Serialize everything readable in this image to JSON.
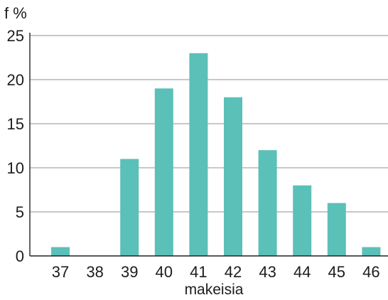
{
  "chart_data": {
    "type": "bar",
    "title": "",
    "ylabel": "f %",
    "xlabel": "makeisia",
    "categories": [
      "37",
      "38",
      "39",
      "40",
      "41",
      "42",
      "43",
      "44",
      "45",
      "46"
    ],
    "values": [
      1,
      0,
      11,
      19,
      23,
      18,
      12,
      8,
      6,
      1
    ],
    "ylim": [
      0,
      25
    ],
    "yticks": [
      0,
      5,
      10,
      15,
      20,
      25
    ],
    "grid": true,
    "bar_color": "#5bc0b8",
    "gridline_color": "#a6a6a6",
    "axis_color": "#222222"
  }
}
